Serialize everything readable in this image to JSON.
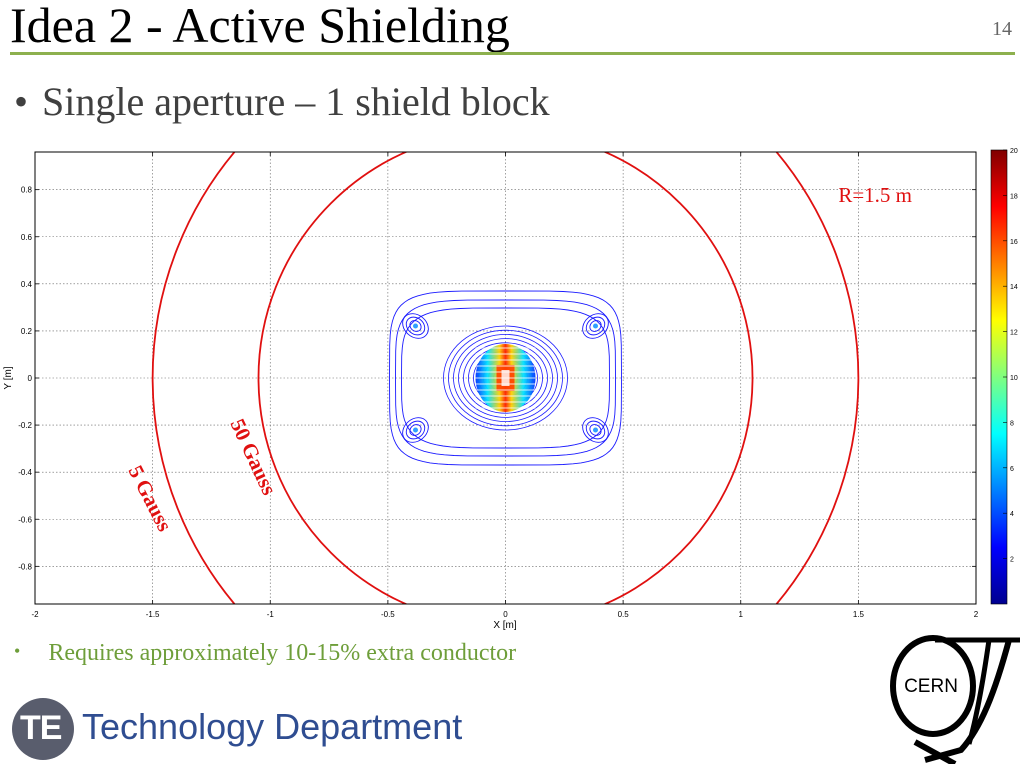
{
  "slide": {
    "title": "Idea 2 - Active Shielding",
    "number": "14",
    "bullet_main": "Single aperture – 1 shield block",
    "bullet_bottom": "Requires approximately 10-15% extra conductor"
  },
  "footer": {
    "te_logo_text": "TE",
    "department": "Technology Department",
    "cern_logo_text": "CERN"
  },
  "chart_data": {
    "type": "heatmap",
    "xlabel": "X [m]",
    "ylabel": "Y [m]",
    "xlim": [
      -2,
      2
    ],
    "ylim": [
      -0.96,
      0.96
    ],
    "xticks": [
      -2,
      -1.5,
      -1,
      -0.5,
      0,
      0.5,
      1,
      1.5,
      2
    ],
    "xtick_labels": [
      "-2",
      "-1.5",
      "-1",
      "-0.5",
      "0",
      "0.5",
      "1",
      "1.5",
      "2"
    ],
    "yticks": [
      -0.8,
      -0.6,
      -0.4,
      -0.2,
      0,
      0.2,
      0.4,
      0.6,
      0.8
    ],
    "ytick_labels": [
      "-0.8",
      "-0.6",
      "-0.4",
      "-0.2",
      "0",
      "0.2",
      "0.4",
      "0.6",
      "0.8"
    ],
    "grid": true,
    "colorbar": {
      "ticks": [
        2,
        4,
        6,
        8,
        10,
        12,
        14,
        16,
        18,
        20
      ],
      "tick_labels": [
        "2",
        "4",
        "6",
        "8",
        "10",
        "12",
        "14",
        "16",
        "18",
        "20"
      ],
      "range": [
        0,
        20
      ]
    },
    "contours": [
      {
        "label": "5 Gauss",
        "radius": 1.5,
        "color": "#e01010"
      },
      {
        "label": "50 Gauss",
        "radius": 1.05,
        "color": "#e01010"
      }
    ],
    "annotations": [
      {
        "text": "R=1.5 m",
        "color": "#e01010"
      },
      {
        "text": "50 Gauss",
        "color": "#e01010"
      },
      {
        "text": "5 Gauss",
        "color": "#e01010"
      }
    ]
  }
}
